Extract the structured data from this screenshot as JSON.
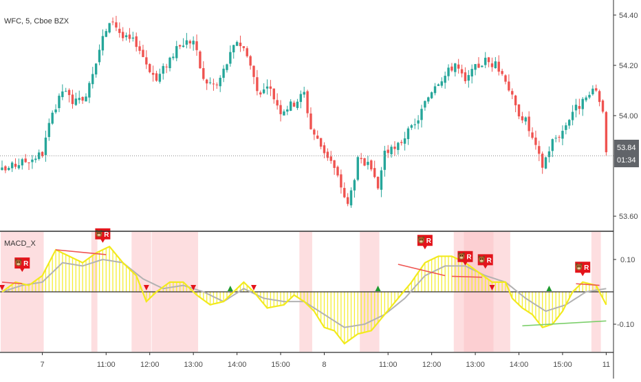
{
  "header": {
    "symbol_title": "WFC, 5, Cboe BZX"
  },
  "indicator": {
    "name": "MACD_X"
  },
  "colors": {
    "up": "#26a69a",
    "down": "#ef5350",
    "hist": "#f4ee33",
    "signal": "#b2b2b2",
    "macd": "#f2ea1d",
    "shade": "#fbc3c6",
    "badge": "#e3141b",
    "buy": "#1e9b2f",
    "sell": "#e3141b",
    "price_tag": "#616469",
    "divergence_bear": "#ef5350",
    "divergence_bull": "#7ccf6b"
  },
  "price_tag": {
    "price": "53.84",
    "countdown": "01:34"
  },
  "badge_letter": "R",
  "chart_data": [
    {
      "type": "candlestick",
      "title": "WFC, 5, Cboe BZX",
      "y_ticks": [
        "54.40",
        "54.20",
        "54.00",
        "53.60"
      ],
      "ylim": [
        53.54,
        54.46
      ],
      "x_ticks": [
        "7",
        "11:00",
        "12:00",
        "13:00",
        "14:00",
        "15:00",
        "8",
        "11:00",
        "12:00",
        "13:00",
        "14:00",
        "15:00",
        "11"
      ],
      "last_price": 53.84,
      "close_path": [
        {
          "i": 0,
          "v": 53.78
        },
        {
          "i": 5,
          "v": 53.81
        },
        {
          "i": 9,
          "v": 53.83
        },
        {
          "i": 12,
          "v": 53.85
        },
        {
          "i": 14,
          "v": 53.96
        },
        {
          "i": 18,
          "v": 54.1
        },
        {
          "i": 21,
          "v": 54.06
        },
        {
          "i": 24,
          "v": 54.05
        },
        {
          "i": 27,
          "v": 54.18
        },
        {
          "i": 30,
          "v": 54.31
        },
        {
          "i": 33,
          "v": 54.38
        },
        {
          "i": 36,
          "v": 54.31
        },
        {
          "i": 40,
          "v": 54.29
        },
        {
          "i": 43,
          "v": 54.21
        },
        {
          "i": 46,
          "v": 54.14
        },
        {
          "i": 50,
          "v": 54.23
        },
        {
          "i": 54,
          "v": 54.29
        },
        {
          "i": 57,
          "v": 54.3
        },
        {
          "i": 60,
          "v": 54.14
        },
        {
          "i": 64,
          "v": 54.12
        },
        {
          "i": 67,
          "v": 54.21
        },
        {
          "i": 70,
          "v": 54.3
        },
        {
          "i": 73,
          "v": 54.25
        },
        {
          "i": 76,
          "v": 54.1
        },
        {
          "i": 80,
          "v": 54.1
        },
        {
          "i": 83,
          "v": 54.02
        },
        {
          "i": 87,
          "v": 54.05
        },
        {
          "i": 90,
          "v": 54.09
        },
        {
          "i": 92,
          "v": 53.95
        },
        {
          "i": 95,
          "v": 53.88
        },
        {
          "i": 98,
          "v": 53.82
        },
        {
          "i": 101,
          "v": 53.72
        },
        {
          "i": 103,
          "v": 53.64
        },
        {
          "i": 106,
          "v": 53.82
        },
        {
          "i": 109,
          "v": 53.8
        },
        {
          "i": 112,
          "v": 53.71
        },
        {
          "i": 114,
          "v": 53.86
        },
        {
          "i": 117,
          "v": 53.86
        },
        {
          "i": 120,
          "v": 53.92
        },
        {
          "i": 123,
          "v": 53.96
        },
        {
          "i": 126,
          "v": 54.05
        },
        {
          "i": 129,
          "v": 54.13
        },
        {
          "i": 132,
          "v": 54.16
        },
        {
          "i": 135,
          "v": 54.21
        },
        {
          "i": 138,
          "v": 54.13
        },
        {
          "i": 141,
          "v": 54.19
        },
        {
          "i": 144,
          "v": 54.22
        },
        {
          "i": 147,
          "v": 54.2
        },
        {
          "i": 150,
          "v": 54.15
        },
        {
          "i": 153,
          "v": 54.03
        },
        {
          "i": 156,
          "v": 53.98
        },
        {
          "i": 159,
          "v": 53.87
        },
        {
          "i": 161,
          "v": 53.8
        },
        {
          "i": 164,
          "v": 53.9
        },
        {
          "i": 167,
          "v": 53.94
        },
        {
          "i": 170,
          "v": 54.02
        },
        {
          "i": 173,
          "v": 54.05
        },
        {
          "i": 175,
          "v": 54.08
        },
        {
          "i": 177,
          "v": 54.1
        },
        {
          "i": 179,
          "v": 54.03
        },
        {
          "i": 180,
          "v": 53.84
        }
      ]
    },
    {
      "type": "histogram+line",
      "title": "MACD_X",
      "y_ticks": [
        "0.10",
        "-0.10"
      ],
      "ylim": [
        -0.185,
        0.185
      ],
      "series": [
        {
          "values_path": [
            {
              "i": 0,
              "v": 0.0
            },
            {
              "i": 4,
              "v": 0.03
            },
            {
              "i": 8,
              "v": 0.02
            },
            {
              "i": 12,
              "v": 0.05
            },
            {
              "i": 16,
              "v": 0.13
            },
            {
              "i": 20,
              "v": 0.11
            },
            {
              "i": 24,
              "v": 0.09
            },
            {
              "i": 28,
              "v": 0.12
            },
            {
              "i": 32,
              "v": 0.14
            },
            {
              "i": 36,
              "v": 0.09
            },
            {
              "i": 40,
              "v": 0.05
            },
            {
              "i": 43,
              "v": -0.03
            },
            {
              "i": 46,
              "v": 0.0
            },
            {
              "i": 50,
              "v": 0.03
            },
            {
              "i": 54,
              "v": 0.03
            },
            {
              "i": 58,
              "v": -0.01
            },
            {
              "i": 62,
              "v": -0.04
            },
            {
              "i": 66,
              "v": -0.03
            },
            {
              "i": 69,
              "v": 0.0
            },
            {
              "i": 72,
              "v": 0.03
            },
            {
              "i": 75,
              "v": 0.0
            },
            {
              "i": 79,
              "v": -0.05
            },
            {
              "i": 84,
              "v": -0.04
            },
            {
              "i": 87,
              "v": -0.01
            },
            {
              "i": 90,
              "v": -0.03
            },
            {
              "i": 93,
              "v": -0.06
            },
            {
              "i": 96,
              "v": -0.11
            },
            {
              "i": 99,
              "v": -0.12
            },
            {
              "i": 102,
              "v": -0.16
            },
            {
              "i": 106,
              "v": -0.13
            },
            {
              "i": 110,
              "v": -0.12
            },
            {
              "i": 114,
              "v": -0.07
            },
            {
              "i": 118,
              "v": -0.02
            },
            {
              "i": 122,
              "v": 0.03
            },
            {
              "i": 126,
              "v": 0.09
            },
            {
              "i": 130,
              "v": 0.11
            },
            {
              "i": 134,
              "v": 0.11
            },
            {
              "i": 138,
              "v": 0.09
            },
            {
              "i": 142,
              "v": 0.06
            },
            {
              "i": 146,
              "v": 0.03
            },
            {
              "i": 150,
              "v": 0.03
            },
            {
              "i": 152,
              "v": -0.02
            },
            {
              "i": 155,
              "v": -0.05
            },
            {
              "i": 158,
              "v": -0.07
            },
            {
              "i": 161,
              "v": -0.11
            },
            {
              "i": 164,
              "v": -0.1
            },
            {
              "i": 167,
              "v": -0.06
            },
            {
              "i": 170,
              "v": 0.0
            },
            {
              "i": 173,
              "v": 0.03
            },
            {
              "i": 177,
              "v": 0.02
            },
            {
              "i": 180,
              "v": -0.04
            }
          ]
        },
        {
          "values_path": [
            {
              "i": 0,
              "v": 0.0
            },
            {
              "i": 6,
              "v": 0.02
            },
            {
              "i": 12,
              "v": 0.03
            },
            {
              "i": 18,
              "v": 0.09
            },
            {
              "i": 24,
              "v": 0.08
            },
            {
              "i": 30,
              "v": 0.1
            },
            {
              "i": 36,
              "v": 0.09
            },
            {
              "i": 42,
              "v": 0.04
            },
            {
              "i": 48,
              "v": 0.01
            },
            {
              "i": 54,
              "v": 0.02
            },
            {
              "i": 60,
              "v": 0.0
            },
            {
              "i": 66,
              "v": -0.03
            },
            {
              "i": 72,
              "v": 0.01
            },
            {
              "i": 78,
              "v": -0.02
            },
            {
              "i": 84,
              "v": -0.03
            },
            {
              "i": 90,
              "v": -0.03
            },
            {
              "i": 96,
              "v": -0.07
            },
            {
              "i": 102,
              "v": -0.11
            },
            {
              "i": 108,
              "v": -0.1
            },
            {
              "i": 114,
              "v": -0.07
            },
            {
              "i": 120,
              "v": -0.02
            },
            {
              "i": 126,
              "v": 0.05
            },
            {
              "i": 132,
              "v": 0.08
            },
            {
              "i": 138,
              "v": 0.08
            },
            {
              "i": 144,
              "v": 0.05
            },
            {
              "i": 150,
              "v": 0.03
            },
            {
              "i": 156,
              "v": -0.02
            },
            {
              "i": 162,
              "v": -0.06
            },
            {
              "i": 168,
              "v": -0.04
            },
            {
              "i": 174,
              "v": 0.0
            },
            {
              "i": 180,
              "v": 0.01
            }
          ]
        }
      ],
      "shade_ranges": [
        [
          0,
          12
        ],
        [
          27,
          28
        ],
        [
          39,
          44
        ],
        [
          45,
          58
        ],
        [
          89,
          92
        ],
        [
          107,
          112
        ],
        [
          135,
          151
        ],
        [
          138,
          146
        ],
        [
          176,
          178
        ]
      ],
      "buy_markers": [
        68,
        112,
        163
      ],
      "sell_markers": [
        0,
        43,
        57,
        75,
        146
      ],
      "badges": [
        {
          "i": 6,
          "v": 0.055
        },
        {
          "i": 30,
          "v": 0.145
        },
        {
          "i": 126,
          "v": 0.125
        },
        {
          "i": 138,
          "v": 0.075
        },
        {
          "i": 144,
          "v": 0.065
        },
        {
          "i": 173,
          "v": 0.042
        }
      ],
      "divergence_lines": [
        {
          "from": {
            "i": 0,
            "v": 0.03
          },
          "to": {
            "i": 6,
            "v": 0.025
          }
        },
        {
          "from": {
            "i": 16,
            "v": 0.13
          },
          "to": {
            "i": 31,
            "v": 0.115
          }
        },
        {
          "from": {
            "i": 118,
            "v": 0.085
          },
          "to": {
            "i": 132,
            "v": 0.05
          }
        },
        {
          "from": {
            "i": 134,
            "v": 0.048
          },
          "to": {
            "i": 143,
            "v": 0.045
          }
        },
        {
          "from": {
            "i": 171,
            "v": 0.025
          },
          "to": {
            "i": 178,
            "v": 0.02
          }
        },
        {
          "from": {
            "i": 155,
            "v": -0.105
          },
          "to": {
            "i": 180,
            "v": -0.09
          }
        }
      ]
    }
  ]
}
